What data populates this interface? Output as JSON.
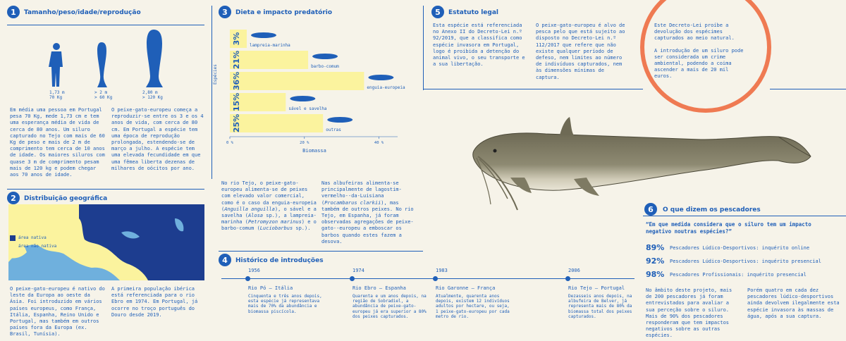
{
  "s1": {
    "number": "1",
    "title": "Tamanho/peso/idade/reprodução",
    "fig_labels": [
      {
        "line1": "1,73 m",
        "line2": "70 Kg"
      },
      {
        "line1": "> 2 m",
        "line2": "> 60 Kg"
      },
      {
        "line1": "2,80 m",
        "line2": "> 120 Kg"
      }
    ],
    "text_left": "Em média uma pessoa em Portugal pesa 70 Kg, mede 1,73 cm e tem uma esperança média de vida de cerca de 80 anos. Um siluro capturado no Tejo com mais de 60 Kg de peso e mais de 2 m de comprimento tem cerca de 10 anos de idade. Os maiores siluros com quase 3 m de comprimento pesam mais de 120 kg e podem chegar aos 70 anos de idade.",
    "text_right": "O peixe-gato-europeu começa a reproduzir-se entre os 3 e os 4 anos de vida, com cerca de 80 cm. Em Portugal a espécie tem uma época de reprodução prolongada, estendendo-se de março a julho. A espécie tem uma elevada fecundidade em que uma fêmea liberta dezenas de milhares de oócitos por ano."
  },
  "s2": {
    "number": "2",
    "title": "Distribuição geográfica",
    "legend": [
      {
        "label": "área nativa",
        "color": "#1d3d8f"
      },
      {
        "label": "área não nativa",
        "color": "#fbf39e"
      }
    ],
    "text_left": "O peixe-gato-europeu é nativo do leste da Europa ao oeste da Ásia. Foi introduzido em vários países europeus, como França, Itália, Espanha, Reino Unido e Portugal, mas também em outros países fora da Europa (ex. Brasil, Tunísia).",
    "text_right": "A primeira população ibérica está referenciada para o rio Ebro em 1974. Em Portugal, já ocorre no troço português do Douro desde 2019."
  },
  "s3": {
    "number": "3",
    "title": "Dieta e impacto predatório",
    "text_left_a": "No rio Tejo, o peixe-gato-europeu alimenta-se de peixes com elevado valor comercial, como é o caso da enguia-europeia (",
    "text_left_b": "Anguilla anguilla",
    "text_left_c": "), o sável e a savelha (",
    "text_left_d": "Alosa",
    "text_left_e": " sp.), a lampreia-marinha (",
    "text_left_f": "Petromyzon marinus",
    "text_left_g": ") e o barbo-comum (",
    "text_left_h": "Luciobarbus",
    "text_left_i": " sp.).",
    "text_right_a": "Nas albufeiras alimenta-se principalmente de lagostim-vermelho--da-Luisiana (",
    "text_right_b": "Procambarus clarkii",
    "text_right_c": "), mas também de outros peixes. No rio Tejo, em Espanha, já foram observadas agregações de peixe-gato--europeu a emboscar os barbos quando estes fazem a desova."
  },
  "chart_data": {
    "type": "bar",
    "orientation": "horizontal",
    "categories": [
      "lampreia-marinha",
      "barbo-comum",
      "enguia-europeia",
      "sável e savelha",
      "outras"
    ],
    "values": [
      3,
      21,
      36,
      15,
      25
    ],
    "value_labels": [
      "3%",
      "21%",
      "36%",
      "15%",
      "25%"
    ],
    "xlabel": "Biomassa",
    "ylabel": "Espécies",
    "xticks": [
      "0 %",
      "20 %",
      "40 %"
    ],
    "xlim": [
      0,
      45
    ],
    "bar_color": "#fbf39e",
    "grid": false
  },
  "s4": {
    "number": "4",
    "title": "Histórico de introduções",
    "events": [
      {
        "year": "1956",
        "place": "Rio Pó – Itália",
        "desc": "Cinquenta e três anos depois, esta espécie já representava mais de 70% da abundância e biomassa piscícola."
      },
      {
        "year": "1974",
        "place": "Rio Ebro – Espanha",
        "desc": "Quarenta e um anos depois, na região de Sobradiel, a abundância de peixe-gato-europeu já era superior a 80% dos peixes capturados."
      },
      {
        "year": "1983",
        "place": "Rio Garonne – França",
        "desc": "Atualmente, quarenta anos depois, existem 12 indivíduos adultos por hectare, ou seja, 1 peixe-gato-europeu por cada metro de rio."
      },
      {
        "year": "2006",
        "place": "Rio Tejo – Portugal",
        "desc": "Dezasseis anos depois, na albufeira de Belver, já representa mais de 80% da biomassa total dos peixes capturados."
      }
    ]
  },
  "s5": {
    "number": "5",
    "title": "Estatuto legal",
    "text_left": "Esta espécie está referenciada no Anexo II do Decreto-Lei n.º 92/2019, que a classifica como espécie invasora em Portugal, logo é proibida a detenção do animal vivo, o seu transporte e a sua libertação.",
    "text_mid": "O peixe-gato-europeu é alvo de pesca pelo que está sujeito ao disposto no Decreto-Lei n.º 112/2017 que refere que não existe qualquer período de defeso, nem limites ao número de indivíduos capturados, nem às dimensões mínimas de captura.",
    "circle_p1": "Este Decreto-Lei proíbe a devolução dos espécimes capturados ao meio natural.",
    "circle_p2": "A introdução de um siluro pode ser considerada um crime ambiental, podendo a coima ascender a mais de 20 mil euros."
  },
  "s6": {
    "number": "6",
    "title": "O que dizem os pescadores",
    "question": "“Em que medida considera que o siluro tem um impacto negativo noutras espécies?”",
    "stats": [
      {
        "pct": "89%",
        "label": "Pescadores Lúdico-Desportivos: inquérito online"
      },
      {
        "pct": "92%",
        "label": "Pescadores Lúdico-Desportivos: inquérito presencial"
      },
      {
        "pct": "98%",
        "label": "Pescadores Profissionais: inquérito presencial"
      }
    ],
    "text_left": "No âmbito deste projeto, mais de 200 pescadores já foram entrevistados para avaliar a sua perceção sobre o siluro. Mais de 90% dos pescadores responderam que tem impactos negativos sobre as outras espécies.",
    "text_right": "Porém quatro em cada dez pescadores lúdico-desportivos ainda devolvem ilegalmente esta espécie invasora às massas de água, após a sua captura."
  },
  "colors": {
    "blue": "#1f5fb8",
    "yellow": "#fbf39e",
    "orange": "#ef7a52",
    "bg": "#f6f3e9"
  }
}
